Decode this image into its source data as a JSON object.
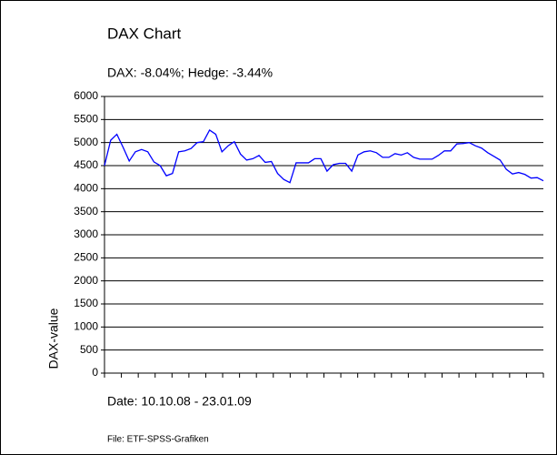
{
  "chart_data": {
    "type": "line",
    "title": "DAX Chart",
    "subtitle": "DAX: -8.04%; Hedge: -3.44%",
    "ylabel": "DAX-value",
    "xlabel": "Date: 10.10.08 - 23.01.09",
    "footnote": "File: ETF-SPSS-Grafiken",
    "color": "#0000ff",
    "grid": true,
    "ylim": [
      0,
      6000
    ],
    "yticks": [
      0,
      500,
      1000,
      1500,
      2000,
      2500,
      3000,
      3500,
      4000,
      4500,
      5000,
      5500,
      6000
    ],
    "values": [
      4500,
      5050,
      5180,
      4900,
      4600,
      4800,
      4850,
      4800,
      4580,
      4500,
      4280,
      4330,
      4800,
      4820,
      4870,
      5000,
      5020,
      5270,
      5180,
      4800,
      4930,
      5020,
      4750,
      4620,
      4650,
      4720,
      4570,
      4590,
      4330,
      4200,
      4130,
      4560,
      4560,
      4560,
      4650,
      4650,
      4380,
      4520,
      4550,
      4550,
      4380,
      4730,
      4800,
      4820,
      4780,
      4680,
      4680,
      4760,
      4730,
      4780,
      4680,
      4640,
      4640,
      4640,
      4720,
      4820,
      4820,
      4970,
      4980,
      5000,
      4930,
      4880,
      4780,
      4700,
      4620,
      4420,
      4320,
      4350,
      4310,
      4230,
      4240,
      4170
    ]
  }
}
